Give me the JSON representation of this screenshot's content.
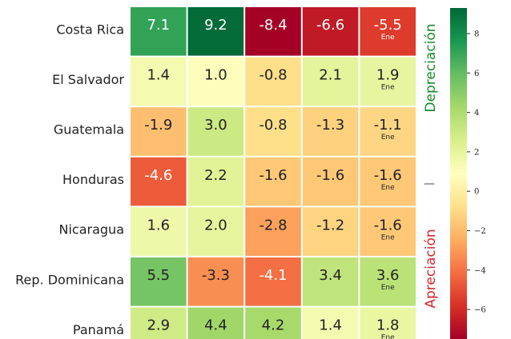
{
  "chart_data": {
    "type": "heatmap",
    "rows": [
      "Costa Rica",
      "El Salvador",
      "Guatemala",
      "Honduras",
      "Nicaragua",
      "Rep. Dominicana",
      "Panamá"
    ],
    "values": [
      [
        7.1,
        9.2,
        -8.4,
        -6.6,
        -5.5
      ],
      [
        1.4,
        1.0,
        -0.8,
        2.1,
        1.9
      ],
      [
        -1.9,
        3.0,
        -0.8,
        -1.3,
        -1.1
      ],
      [
        -4.6,
        2.2,
        -1.6,
        -1.6,
        -1.6
      ],
      [
        1.6,
        2.0,
        -2.8,
        -1.2,
        -1.6
      ],
      [
        5.5,
        -3.3,
        -4.1,
        3.4,
        3.6
      ],
      [
        2.9,
        4.4,
        4.2,
        1.4,
        1.8
      ]
    ],
    "labels": [
      [
        "7.1",
        "9.2",
        "-8.4",
        "-6.6",
        "-5.5"
      ],
      [
        "1.4",
        "1.0",
        "-0.8",
        "2.1",
        "1.9"
      ],
      [
        "-1.9",
        "3.0",
        "-0.8",
        "-1.3",
        "-1.1"
      ],
      [
        "-4.6",
        "2.2",
        "-1.6",
        "-1.6",
        "-1.6"
      ],
      [
        "1.6",
        "2.0",
        "-2.8",
        "-1.2",
        "-1.6"
      ],
      [
        "5.5",
        "-3.3",
        "-4.1",
        "3.4",
        "3.6"
      ],
      [
        "2.9",
        "4.4",
        "4.2",
        "1.4",
        "1.8"
      ]
    ],
    "last_column_note": "Ene",
    "colormap": "RdYlGn",
    "vrange": [
      -7.5,
      9.3
    ],
    "colorbar": {
      "ticks": [
        8,
        6,
        4,
        2,
        0,
        -2,
        -4,
        -6
      ],
      "tick_labels": [
        "8",
        "6",
        "4",
        "2",
        "0",
        "−2",
        "−4",
        "−6"
      ]
    },
    "side_labels": {
      "top": "Depreciación",
      "top_color": "#1a8a2a",
      "separator": "—",
      "bottom": "Apreciación",
      "bottom_color": "#d62728"
    }
  }
}
